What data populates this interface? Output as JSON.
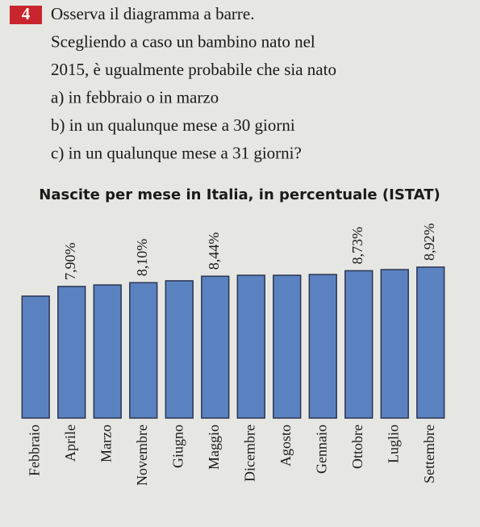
{
  "exercise": {
    "number": "4",
    "lines": [
      "Osserva il diagramma a barre.",
      "Scegliendo a caso un bambino nato nel",
      "2015, è ugualmente probabile che sia nato",
      "a) in febbraio o in marzo",
      "b) in un qualunque mese a 30 giorni",
      "c) in un qualunque mese a 31 giorni?"
    ]
  },
  "chart_data": {
    "type": "bar",
    "title": "Nascite per mese in Italia, in percentuale (ISTAT)",
    "categories": [
      "Febbraio",
      "Aprile",
      "Marzo",
      "Novembre",
      "Giugno",
      "Maggio",
      "Dicembre",
      "Agosto",
      "Gennaio",
      "Ottobre",
      "Luglio",
      "Settembre"
    ],
    "values": [
      7.39,
      7.9,
      7.98,
      8.1,
      8.2,
      8.44,
      8.49,
      8.49,
      8.53,
      8.73,
      8.79,
      8.92
    ],
    "value_labels": [
      null,
      "7,90%",
      null,
      "8,10%",
      null,
      "8,44%",
      null,
      null,
      null,
      "8,73%",
      null,
      "8,92%"
    ],
    "color": "#5b82c0",
    "ylim": [
      0.96,
      9
    ]
  }
}
